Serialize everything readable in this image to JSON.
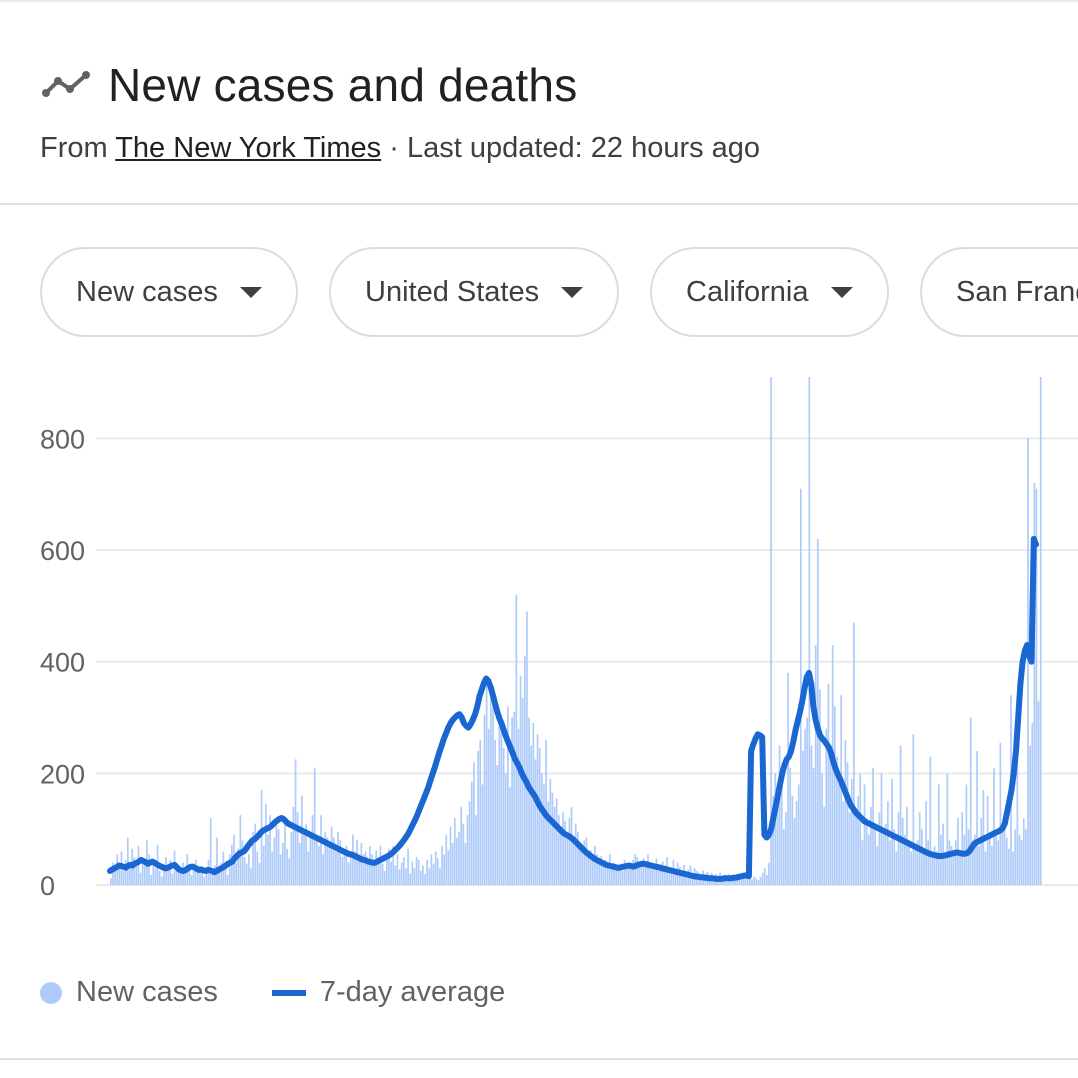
{
  "header": {
    "title": "New cases and deaths",
    "title_icon": "trend-line-icon",
    "from_label": "From",
    "source": "The New York Times",
    "updated": " · Last updated: 22 hours ago"
  },
  "filters": [
    {
      "label": "New cases"
    },
    {
      "label": "United States"
    },
    {
      "label": "California"
    },
    {
      "label": "San Francisco"
    }
  ],
  "colors": {
    "bar": "#aecbfa",
    "line": "#1a67d2",
    "grid": "#e8eaed",
    "tick": "#5f6368"
  },
  "chart_data": {
    "type": "bar",
    "x_ticks": "none",
    "ylim": [
      0,
      910
    ],
    "yticks": [
      0,
      200,
      400,
      600,
      800
    ],
    "grid": true,
    "legend_position": "bottom-left",
    "series": [
      {
        "name": "New cases",
        "render": "bar",
        "values": [
          12,
          40,
          28,
          55,
          35,
          60,
          25,
          45,
          85,
          30,
          65,
          50,
          40,
          70,
          22,
          48,
          35,
          80,
          55,
          18,
          40,
          30,
          72,
          25,
          15,
          38,
          50,
          28,
          45,
          20,
          62,
          35,
          25,
          30,
          40,
          22,
          55,
          30,
          18,
          25,
          45,
          35,
          28,
          22,
          15,
          30,
          45,
          120,
          20,
          35,
          85,
          25,
          40,
          60,
          30,
          18,
          55,
          72,
          90,
          40,
          65,
          125,
          80,
          50,
          38,
          55,
          30,
          95,
          110,
          60,
          40,
          170,
          70,
          145,
          90,
          125,
          60,
          85,
          120,
          100,
          55,
          75,
          115,
          65,
          48,
          95,
          140,
          225,
          130,
          75,
          160,
          90,
          110,
          60,
          85,
          125,
          210,
          80,
          70,
          125,
          55,
          95,
          85,
          70,
          105,
          85,
          60,
          95,
          80,
          50,
          65,
          70,
          40,
          55,
          90,
          60,
          80,
          45,
          75,
          55,
          60,
          40,
          70,
          55,
          35,
          62,
          48,
          70,
          38,
          25,
          50,
          65,
          42,
          70,
          35,
          55,
          28,
          40,
          50,
          30,
          65,
          20,
          42,
          30,
          50,
          45,
          25,
          35,
          20,
          45,
          30,
          55,
          38,
          60,
          48,
          30,
          70,
          55,
          90,
          62,
          105,
          75,
          120,
          85,
          95,
          140,
          110,
          75,
          125,
          150,
          185,
          220,
          125,
          240,
          260,
          180,
          305,
          375,
          280,
          370,
          345,
          260,
          215,
          310,
          280,
          245,
          200,
          320,
          175,
          300,
          310,
          520,
          280,
          375,
          335,
          410,
          490,
          300,
          250,
          290,
          225,
          270,
          245,
          200,
          180,
          260,
          150,
          190,
          165,
          140,
          155,
          125,
          105,
          130,
          115,
          90,
          120,
          140,
          80,
          110,
          95,
          75,
          65,
          80,
          85,
          55,
          62,
          48,
          70,
          55,
          40,
          52,
          38,
          45,
          35,
          55,
          28,
          40,
          35,
          30,
          38,
          25,
          45,
          32,
          38,
          40,
          45,
          55,
          50,
          35,
          42,
          48,
          38,
          55,
          32,
          40,
          30,
          48,
          25,
          38,
          42,
          35,
          50,
          28,
          30,
          45,
          22,
          40,
          32,
          18,
          36,
          22,
          28,
          35,
          20,
          30,
          25,
          22,
          18,
          26,
          20,
          24,
          18,
          22,
          16,
          20,
          15,
          22,
          12,
          18,
          14,
          20,
          16,
          12,
          18,
          10,
          15,
          14,
          20,
          12,
          18,
          22,
          10,
          15,
          12,
          9,
          14,
          22,
          30,
          18,
          40,
          910,
          160,
          200,
          140,
          250,
          180,
          100,
          130,
          380,
          210,
          160,
          120,
          150,
          180,
          710,
          240,
          280,
          300,
          910,
          250,
          210,
          430,
          620,
          350,
          200,
          140,
          280,
          360,
          250,
          430,
          320,
          230,
          180,
          340,
          150,
          260,
          220,
          130,
          190,
          470,
          130,
          160,
          200,
          80,
          180,
          120,
          90,
          140,
          210,
          110,
          70,
          130,
          200,
          90,
          110,
          150,
          80,
          190,
          100,
          60,
          130,
          250,
          120,
          90,
          140,
          80,
          60,
          270,
          70,
          80,
          130,
          100,
          60,
          150,
          80,
          230,
          50,
          70,
          60,
          180,
          90,
          110,
          50,
          200,
          80,
          70,
          60,
          80,
          120,
          55,
          130,
          90,
          180,
          100,
          300,
          80,
          90,
          240,
          70,
          120,
          170,
          60,
          160,
          95,
          70,
          210,
          90,
          80,
          255,
          100,
          130,
          85,
          65,
          340,
          60,
          100,
          310,
          90,
          80,
          120,
          100,
          800,
          250,
          290,
          720,
          710,
          330,
          910
        ]
      },
      {
        "name": "7-day average",
        "render": "line",
        "values": [
          25,
          28,
          30,
          32,
          35,
          34,
          33,
          31,
          34,
          36,
          35,
          38,
          40,
          42,
          45,
          43,
          41,
          38,
          40,
          42,
          40,
          37,
          35,
          33,
          31,
          30,
          31,
          33,
          35,
          36,
          32,
          28,
          26,
          25,
          27,
          30,
          32,
          33,
          31,
          29,
          27,
          28,
          26,
          25,
          27,
          26,
          25,
          23,
          25,
          28,
          30,
          32,
          35,
          38,
          40,
          42,
          48,
          52,
          56,
          58,
          60,
          64,
          70,
          75,
          80,
          82,
          86,
          90,
          95,
          98,
          100,
          102,
          104,
          108,
          112,
          115,
          118,
          120,
          118,
          114,
          110,
          108,
          106,
          104,
          102,
          100,
          98,
          96,
          94,
          92,
          90,
          88,
          86,
          84,
          82,
          80,
          78,
          76,
          74,
          72,
          70,
          68,
          66,
          64,
          62,
          60,
          58,
          56,
          55,
          54,
          52,
          50,
          48,
          46,
          45,
          44,
          42,
          41,
          40,
          40,
          42,
          44,
          46,
          48,
          50,
          52,
          55,
          58,
          62,
          66,
          70,
          75,
          80,
          86,
          92,
          100,
          108,
          116,
          125,
          135,
          145,
          155,
          165,
          175,
          188,
          200,
          212,
          225,
          238,
          250,
          262,
          272,
          282,
          290,
          296,
          300,
          304,
          306,
          300,
          290,
          285,
          282,
          288,
          296,
          306,
          320,
          338,
          350,
          362,
          370,
          365,
          355,
          340,
          325,
          310,
          298,
          288,
          276,
          265,
          255,
          245,
          235,
          225,
          218,
          210,
          200,
          192,
          185,
          176,
          170,
          164,
          158,
          150,
          142,
          136,
          130,
          124,
          120,
          116,
          112,
          108,
          104,
          100,
          96,
          92,
          90,
          88,
          85,
          82,
          78,
          74,
          70,
          66,
          62,
          58,
          55,
          52,
          49,
          46,
          44,
          42,
          40,
          38,
          36,
          35,
          34,
          33,
          32,
          31,
          31,
          32,
          33,
          34,
          35,
          34,
          33,
          34,
          36,
          37,
          38,
          38,
          37,
          36,
          35,
          34,
          33,
          32,
          31,
          30,
          29,
          28,
          27,
          26,
          25,
          24,
          23,
          22,
          21,
          20,
          19,
          18,
          17,
          16,
          15,
          15,
          14,
          14,
          13,
          13,
          12,
          12,
          12,
          11,
          11,
          11,
          11,
          12,
          12,
          12,
          12,
          13,
          13,
          14,
          15,
          16,
          17,
          17,
          16,
          240,
          252,
          262,
          270,
          268,
          265,
          90,
          85,
          90,
          100,
          120,
          140,
          160,
          180,
          200,
          215,
          225,
          230,
          240,
          258,
          278,
          294,
          310,
          330,
          352,
          372,
          380,
          360,
          320,
          296,
          280,
          268,
          262,
          258,
          252,
          246,
          236,
          220,
          208,
          198,
          190,
          180,
          170,
          160,
          150,
          142,
          136,
          130,
          126,
          122,
          118,
          114,
          112,
          110,
          108,
          106,
          104,
          102,
          100,
          98,
          96,
          94,
          92,
          90,
          88,
          86,
          84,
          82,
          80,
          78,
          76,
          74,
          72,
          70,
          68,
          66,
          64,
          62,
          60,
          58,
          56,
          55,
          54,
          53,
          52,
          52,
          52,
          53,
          54,
          55,
          56,
          57,
          58,
          58,
          57,
          56,
          56,
          57,
          60,
          66,
          72,
          76,
          78,
          80,
          82,
          84,
          86,
          88,
          90,
          92,
          94,
          96,
          98,
          102,
          110,
          130,
          150,
          170,
          200,
          240,
          300,
          360,
          400,
          420,
          430,
          410,
          400,
          620,
          610
        ]
      }
    ]
  }
}
